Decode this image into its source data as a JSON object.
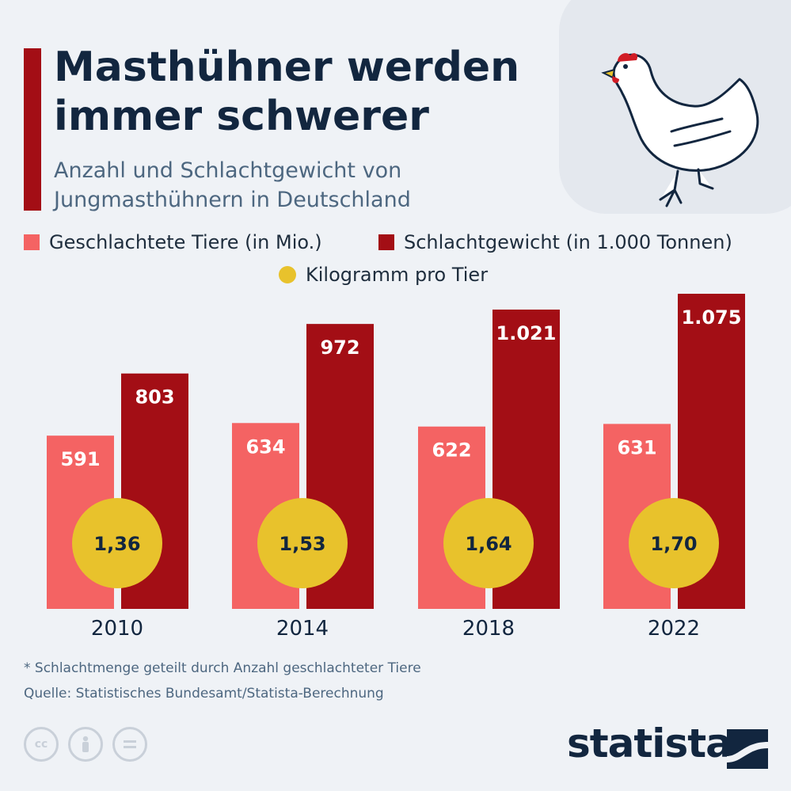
{
  "title": "Masthühner werden immer schwerer",
  "subtitle": "Anzahl und Schlachtgewicht von Jungmasthühnern in Deutschland",
  "legend": {
    "animals": "Geschlachtete Tiere (in Mio.)",
    "weight": "Schlachtgewicht (in 1.000 Tonnen)",
    "per_animal": "Kilogramm pro Tier"
  },
  "colors": {
    "animals": "#f46363",
    "weight": "#a30e15",
    "per_animal": "#e8c22c"
  },
  "chart_data": {
    "type": "bar",
    "categories": [
      "2010",
      "2014",
      "2018",
      "2022"
    ],
    "series": [
      {
        "name": "Geschlachtete Tiere (in Mio.)",
        "values": [
          591,
          634,
          622,
          631
        ],
        "labels": [
          "591",
          "634",
          "622",
          "631"
        ]
      },
      {
        "name": "Schlachtgewicht (in 1.000 Tonnen)",
        "values": [
          803,
          972,
          1021,
          1075
        ],
        "labels": [
          "803",
          "972",
          "1.021",
          "1.075"
        ]
      },
      {
        "name": "Kilogramm pro Tier",
        "values": [
          1.36,
          1.53,
          1.64,
          1.7
        ],
        "labels": [
          "1,36",
          "1,53",
          "1,64",
          "1,70"
        ]
      }
    ],
    "ylim": [
      0,
      1075
    ],
    "grid": false,
    "legend_position": "top"
  },
  "footnote": "* Schlachtmenge geteilt durch Anzahl geschlachteter Tiere",
  "source": "Quelle: Statistisches Bundesamt/Statista-Berechnung",
  "brand": "statista",
  "icons": [
    "cc-icon",
    "by-icon",
    "nd-icon",
    "chicken-icon",
    "statista-logo-icon"
  ]
}
